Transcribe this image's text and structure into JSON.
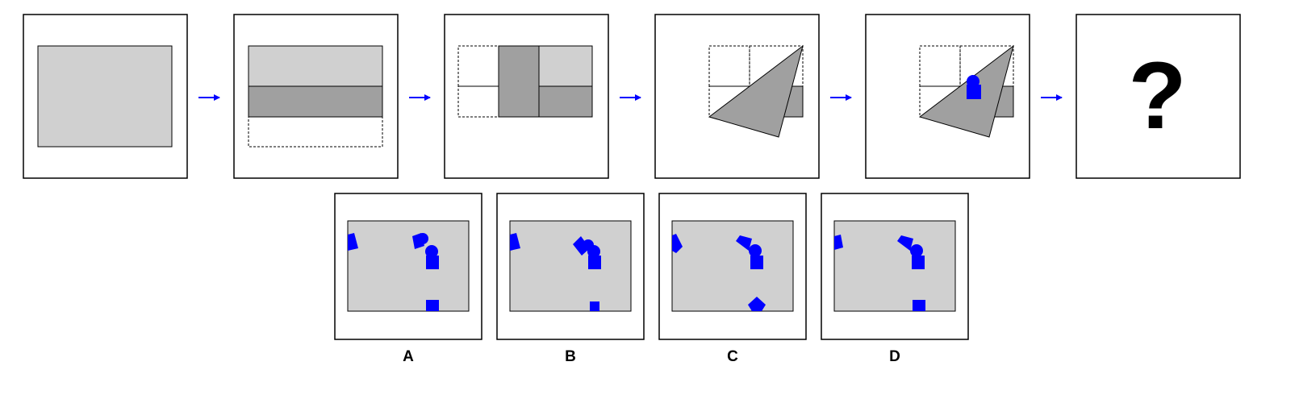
{
  "puzzle": {
    "question_mark": "?",
    "option_labels": [
      "A",
      "B",
      "C",
      "D"
    ]
  },
  "colors": {
    "paper": "#d0d0d0",
    "folded": "#a0a0a0",
    "hole": "#0000ff",
    "arrow": "#0000ff",
    "frame": "#000000"
  },
  "icons": {
    "arrow": "right-arrow-icon",
    "hole_square": "square-hole-icon",
    "hole_circle": "circle-hole-icon"
  }
}
